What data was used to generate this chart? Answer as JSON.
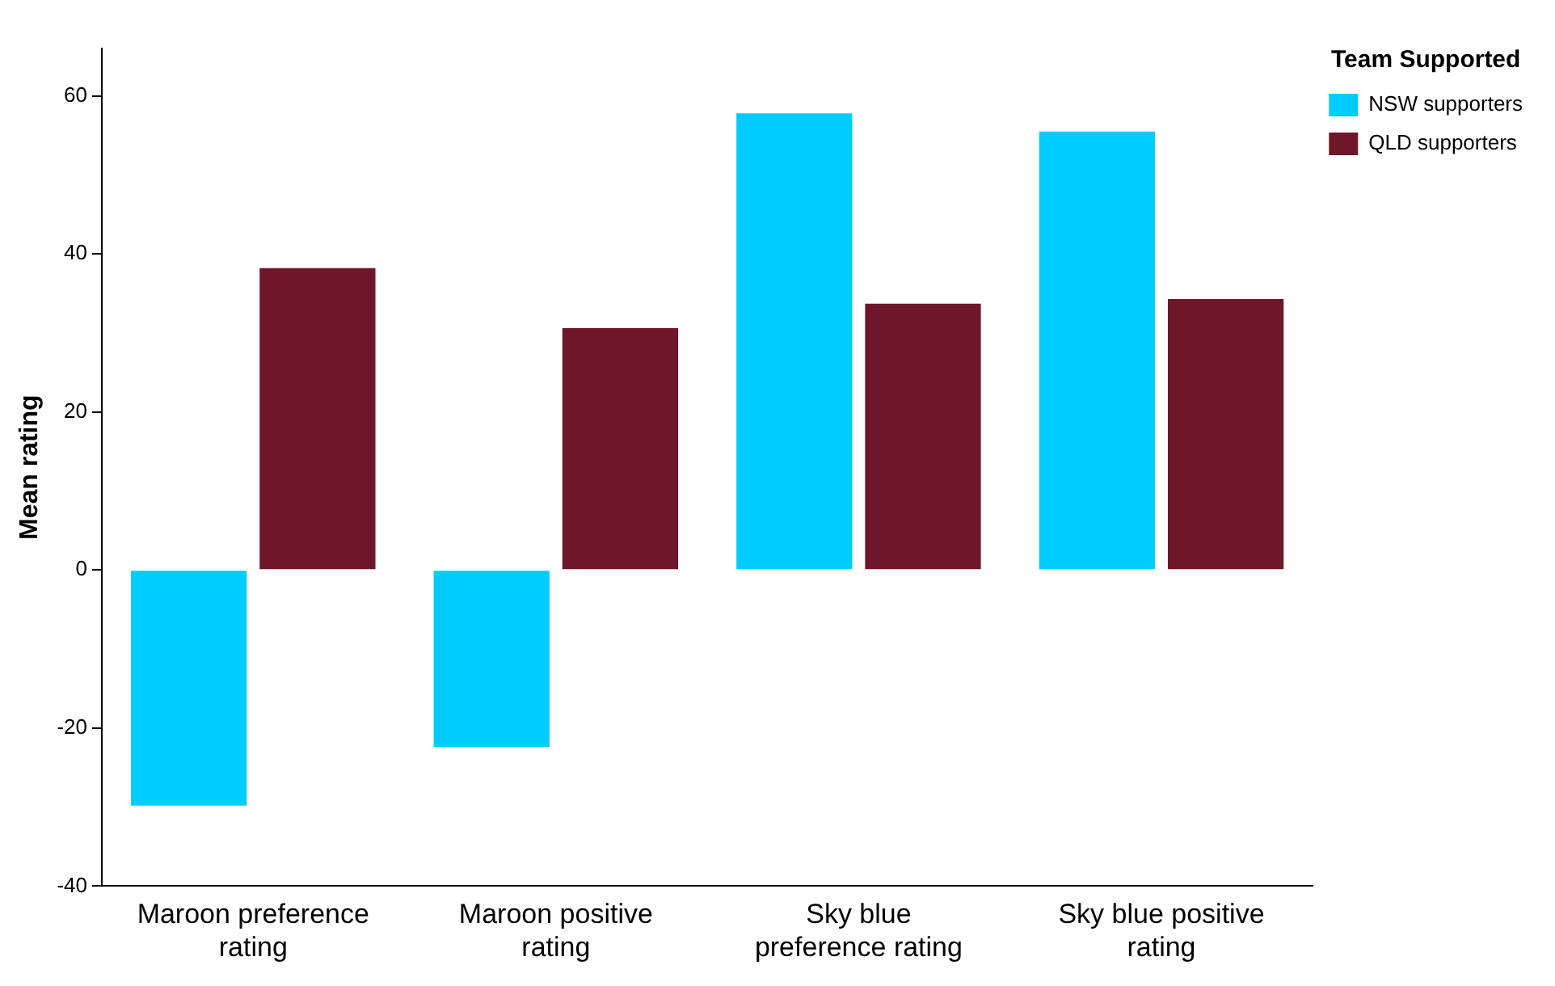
{
  "chart_data": {
    "type": "bar",
    "ylabel": "Mean rating",
    "legend_title": "Team Supported",
    "legend": "top right",
    "grid": false,
    "categories": [
      "Maroon preference rating",
      "Maroon positive rating",
      "Sky blue preference rating",
      "Sky blue positive rating"
    ],
    "series": [
      {
        "name": "NSW supporters",
        "color": "#00ccff",
        "values": [
          -29.8,
          -22.4,
          57.8,
          55.5
        ]
      },
      {
        "name": "QLD supporters",
        "color": "#6e172b",
        "values": [
          38.2,
          30.6,
          33.7,
          34.3
        ]
      }
    ],
    "ylim": [
      -40,
      66
    ],
    "yticks": [
      -40,
      -20,
      0,
      20,
      40,
      60
    ]
  }
}
